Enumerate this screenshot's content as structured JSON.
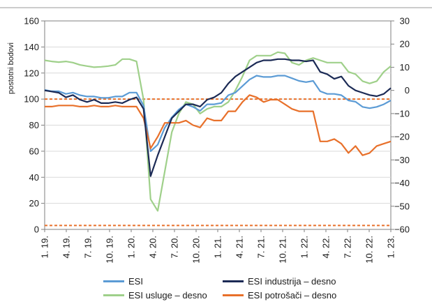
{
  "chart_data": {
    "type": "line",
    "ylabel": "postotni bodovi",
    "x_ticks": [
      "1. 19.",
      "4. 19.",
      "7. 19.",
      "10. 19.",
      "1. 20.",
      "4. 20.",
      "7. 20.",
      "10. 20.",
      "1. 21.",
      "4. 21.",
      "7. 21.",
      "10. 21.",
      "1. 22.",
      "4. 22.",
      "7. 22.",
      "10. 22.",
      "1. 23."
    ],
    "y_left": {
      "min": 0,
      "max": 160,
      "ticks": [
        0,
        20,
        40,
        60,
        80,
        100,
        120,
        140,
        160
      ]
    },
    "y_right": {
      "min": -60,
      "max": 30,
      "ticks": [
        -60,
        -50,
        -40,
        -30,
        -20,
        -10,
        0,
        10,
        20,
        30
      ]
    },
    "reference_lines": [
      {
        "axis": "left",
        "value": 100,
        "color": "#e8702a",
        "style": "dashed"
      },
      {
        "axis": "left",
        "value": 3,
        "color": "#e8702a",
        "style": "dashed"
      }
    ],
    "series": [
      {
        "name": "ESI",
        "axis": "left",
        "color": "#5b9bd5",
        "values": [
          107,
          106,
          106,
          104,
          105,
          103,
          102,
          102,
          101,
          101,
          102,
          102,
          105,
          105,
          95,
          60,
          65,
          78,
          86,
          92,
          96,
          94,
          91,
          96,
          96,
          97,
          103,
          105,
          110,
          115,
          118,
          117,
          117,
          118,
          118,
          116,
          114,
          113,
          114,
          106,
          104,
          104,
          103,
          99,
          98,
          94,
          93,
          94,
          96,
          99
        ]
      },
      {
        "name": "ESI industrija – desno",
        "axis": "right",
        "color": "#1b2a55",
        "values": [
          0,
          -0.5,
          -1,
          -3,
          -2,
          -4,
          -5,
          -4,
          -5.5,
          -5.5,
          -5,
          -5.5,
          -4,
          -3,
          -8,
          -37,
          -28,
          -20,
          -12,
          -9,
          -6,
          -6,
          -7,
          -4,
          -3,
          -1,
          3,
          6,
          8,
          10,
          12,
          13,
          13,
          13.5,
          13.5,
          13,
          13,
          12.5,
          13,
          8,
          7,
          5,
          6,
          2,
          0,
          -1,
          -2,
          -2.5,
          -1.5,
          1
        ]
      },
      {
        "name": "ESI usluge – desno",
        "axis": "right",
        "color": "#9fd08a",
        "values": [
          13,
          12.5,
          12.2,
          12.5,
          12,
          11,
          10.5,
          10,
          10.2,
          10.5,
          11,
          13.5,
          13.5,
          12.5,
          -4,
          -47,
          -52,
          -35,
          -18,
          -10,
          -5,
          -6,
          -10,
          -8,
          -7,
          -7,
          -5,
          0,
          6,
          13,
          15,
          15,
          15,
          16.5,
          16,
          12,
          11,
          13,
          14,
          13,
          12,
          12,
          12,
          8,
          7,
          4,
          3,
          4,
          8,
          10.5
        ]
      },
      {
        "name": "ESI potrošači – desno",
        "axis": "right",
        "color": "#e8702a",
        "values": [
          -7,
          -7,
          -6.5,
          -6.5,
          -6.5,
          -7,
          -7,
          -6.5,
          -7,
          -7,
          -6.5,
          -7,
          -7,
          -7,
          -12,
          -25,
          -20,
          -14,
          -14,
          -14,
          -13,
          -15,
          -16,
          -12,
          -13,
          -13,
          -9,
          -9,
          -5,
          -2,
          -3,
          -5,
          -4,
          -4,
          -6,
          -8,
          -9,
          -9,
          -9,
          -22,
          -22,
          -21,
          -23,
          -27,
          -24,
          -28,
          -27,
          -24,
          -23,
          -22
        ]
      }
    ]
  }
}
